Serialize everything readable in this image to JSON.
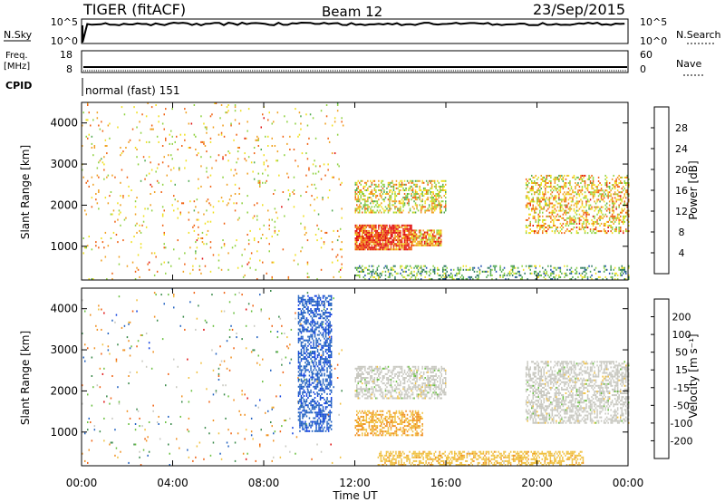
{
  "header": {
    "station": "TIGER (fitACF)",
    "beam": "Beam 12",
    "date": "23/Sep/2015"
  },
  "panels": {
    "nsky": {
      "left_label": "N.Sky",
      "right_label": "N.Search",
      "left_ticks": [
        "10^5",
        "10^0"
      ],
      "right_ticks": [
        "10^5",
        "10^0"
      ]
    },
    "freq": {
      "left_label_1": "Freq.",
      "left_label_2": "[MHz]",
      "right_label": "Nave",
      "left_ticks": [
        "18",
        "8"
      ],
      "right_ticks": [
        "60",
        "0"
      ]
    },
    "cpid": {
      "label": "CPID",
      "mode_text": "normal (fast) 151"
    }
  },
  "colorbars": {
    "power": {
      "title": "Power [dB]",
      "ticks": [
        "28",
        "24",
        "20",
        "16",
        "12",
        "8",
        "4"
      ],
      "colors": [
        "#1010e0",
        "#1f4fb0",
        "#2e7a60",
        "#4faa50",
        "#8fd240",
        "#f0e020",
        "#f0a020",
        "#f06010",
        "#e01010"
      ]
    },
    "velocity": {
      "title": "Velocity [m s⁻¹]",
      "ticks": [
        "200",
        "100",
        "50",
        "15",
        "-15",
        "-50",
        "-100",
        "-200"
      ],
      "colors": [
        "#1040e0",
        "#2060c0",
        "#3a8a4a",
        "#6ac040",
        "#c8c8c0",
        "#f0c040",
        "#f09020",
        "#f06010",
        "#e01010"
      ]
    }
  },
  "axes": {
    "x_label": "Time UT",
    "x_ticks": [
      "00:00",
      "04:00",
      "08:00",
      "12:00",
      "16:00",
      "20:00",
      "00:00"
    ],
    "y_label": "Slant Range [km]",
    "y_ticks": [
      "1000",
      "2000",
      "3000",
      "4000"
    ]
  },
  "chart_data": [
    {
      "type": "heatmap",
      "title": "Power",
      "xlabel": "Time UT",
      "ylabel": "Slant Range [km]",
      "xlim": [
        "00:00",
        "24:00"
      ],
      "ylim": [
        180,
        4500
      ],
      "colorbar_label": "Power [dB]",
      "colorbar_range": [
        0,
        30
      ],
      "features": [
        {
          "time_start": 12.0,
          "time_end": 14.5,
          "range_start": 900,
          "range_end": 1500,
          "value": 26
        },
        {
          "time_start": 14.5,
          "time_end": 15.8,
          "range_start": 1000,
          "range_end": 1400,
          "value": 22
        },
        {
          "time_start": 12.0,
          "time_end": 16.0,
          "range_start": 1800,
          "range_end": 2600,
          "value": 18
        },
        {
          "time_start": 19.5,
          "time_end": 24.0,
          "range_start": 1300,
          "range_end": 2700,
          "value": 20
        },
        {
          "time_start": 12.0,
          "time_end": 24.0,
          "range_start": 180,
          "range_end": 500,
          "value": 12
        },
        {
          "time_start": 0.0,
          "time_end": 11.5,
          "range_start": 180,
          "range_end": 4500,
          "value": 20
        }
      ]
    },
    {
      "type": "heatmap",
      "title": "Velocity",
      "xlabel": "Time UT",
      "ylabel": "Slant Range [km]",
      "xlim": [
        "00:00",
        "24:00"
      ],
      "ylim": [
        180,
        4500
      ],
      "colorbar_label": "Velocity [m s⁻¹]",
      "colorbar_range": [
        -250,
        250
      ],
      "features": [
        {
          "time_start": 12.0,
          "time_end": 15.0,
          "range_start": 900,
          "range_end": 1500,
          "value": -80
        },
        {
          "time_start": 12.0,
          "time_end": 16.0,
          "range_start": 1800,
          "range_end": 2600,
          "value": 0
        },
        {
          "time_start": 19.5,
          "time_end": 24.0,
          "range_start": 1200,
          "range_end": 2700,
          "value": 0
        },
        {
          "time_start": 13.0,
          "time_end": 22.0,
          "range_start": 180,
          "range_end": 500,
          "value": -60
        },
        {
          "time_start": 9.5,
          "time_end": 11.0,
          "range_start": 1000,
          "range_end": 4300,
          "value": 180
        }
      ]
    }
  ]
}
